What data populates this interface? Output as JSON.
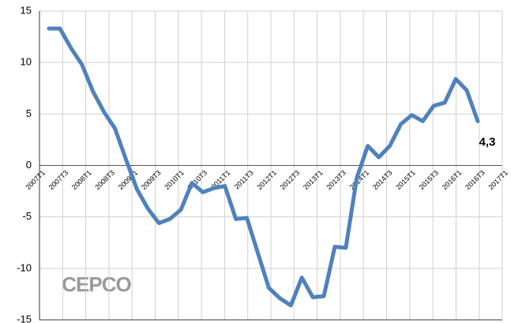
{
  "chart_data": {
    "type": "line",
    "categories": [
      "2007T1",
      null,
      "2007T3",
      null,
      "2008T1",
      null,
      "2008T3",
      null,
      "2009T1",
      null,
      "2009T3",
      null,
      "2010T1",
      null,
      "2010T3",
      null,
      "2011T1",
      null,
      "2011T3",
      null,
      "2012T1",
      null,
      "2012T3",
      null,
      "2013T1",
      null,
      "2013T3",
      null,
      "2014T1",
      null,
      "2014T3",
      null,
      "2015T1",
      null,
      "2015T3",
      null,
      "2016T1",
      null,
      "2016T3",
      null,
      "2017T1"
    ],
    "series": [
      {
        "color": "#4f81bd",
        "values": [
          13.3,
          13.3,
          11.4,
          9.8,
          7.2,
          5.2,
          3.6,
          0.6,
          -2.3,
          -4.2,
          -5.6,
          -5.2,
          -4.3,
          -1.7,
          -2.6,
          -2.2,
          -2.0,
          -5.2,
          -5.1,
          -8.5,
          -11.9,
          -12.9,
          -13.6,
          -10.9,
          -12.8,
          -12.7,
          -7.9,
          -8.0,
          -1.2,
          1.9,
          0.8,
          1.9,
          4.0,
          4.9,
          4.3,
          5.8,
          6.1,
          8.4,
          7.3,
          4.3,
          null
        ],
        "value_labels": {
          "39": "4,3"
        }
      }
    ],
    "ylim": [
      -15,
      15
    ],
    "yticks": [
      -15,
      -10,
      -5,
      0,
      5,
      10,
      15
    ],
    "grid": true,
    "logo": "CEPCO"
  }
}
